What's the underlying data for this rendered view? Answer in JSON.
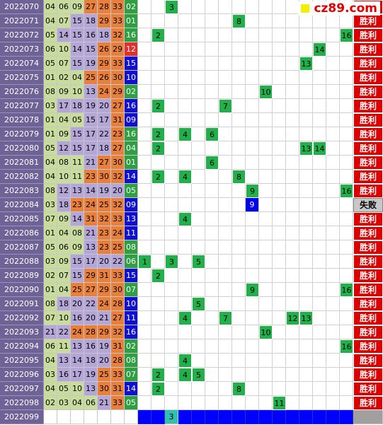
{
  "logo": "cz89.com",
  "rows": [
    {
      "issue": "2022070",
      "numbers": [
        "04",
        "06",
        "09",
        "27",
        "28",
        "33",
        "02"
      ],
      "blue_color": "#2ea043",
      "marks": [
        3
      ],
      "result": "胜利"
    },
    {
      "issue": "2022071",
      "numbers": [
        "04",
        "07",
        "15",
        "18",
        "29",
        "33",
        "01"
      ],
      "blue_color": "#2ea043",
      "marks": [
        8
      ],
      "result": "胜利"
    },
    {
      "issue": "2022072",
      "numbers": [
        "05",
        "14",
        "15",
        "16",
        "18",
        "32",
        "16"
      ],
      "blue_color": "#2ea043",
      "marks": [
        2,
        16
      ],
      "result": "胜利"
    },
    {
      "issue": "2022073",
      "numbers": [
        "06",
        "10",
        "14",
        "15",
        "26",
        "29",
        "12"
      ],
      "blue_color": "#e03030",
      "marks": [
        14
      ],
      "result": "胜利"
    },
    {
      "issue": "2022074",
      "numbers": [
        "05",
        "07",
        "15",
        "19",
        "29",
        "33",
        "15"
      ],
      "blue_color": "#1010d0",
      "marks": [
        13
      ],
      "result": "胜利"
    },
    {
      "issue": "2022075",
      "numbers": [
        "01",
        "02",
        "04",
        "25",
        "26",
        "30",
        "10"
      ],
      "blue_color": "#1010d0",
      "marks": [],
      "result": "胜利"
    },
    {
      "issue": "2022076",
      "numbers": [
        "08",
        "09",
        "10",
        "13",
        "24",
        "29",
        "02"
      ],
      "blue_color": "#2ea043",
      "marks": [
        10
      ],
      "result": "胜利"
    },
    {
      "issue": "2022077",
      "numbers": [
        "03",
        "17",
        "18",
        "19",
        "20",
        "27",
        "16"
      ],
      "blue_color": "#1010d0",
      "marks": [
        2,
        7
      ],
      "result": "胜利"
    },
    {
      "issue": "2022078",
      "numbers": [
        "01",
        "04",
        "05",
        "15",
        "17",
        "31",
        "09"
      ],
      "blue_color": "#1010d0",
      "marks": [],
      "result": "胜利"
    },
    {
      "issue": "2022079",
      "numbers": [
        "01",
        "09",
        "15",
        "17",
        "22",
        "23",
        "16"
      ],
      "blue_color": "#2ea043",
      "marks": [
        2,
        4,
        6
      ],
      "result": "胜利"
    },
    {
      "issue": "2022080",
      "numbers": [
        "05",
        "12",
        "15",
        "17",
        "18",
        "27",
        "04"
      ],
      "blue_color": "#2ea043",
      "marks": [
        2,
        13,
        14
      ],
      "result": "胜利"
    },
    {
      "issue": "2022081",
      "numbers": [
        "04",
        "08",
        "11",
        "21",
        "27",
        "30",
        "01"
      ],
      "blue_color": "#2ea043",
      "marks": [
        6
      ],
      "result": "胜利"
    },
    {
      "issue": "2022082",
      "numbers": [
        "04",
        "10",
        "11",
        "23",
        "30",
        "32",
        "14"
      ],
      "blue_color": "#1010d0",
      "marks": [
        2,
        4,
        8
      ],
      "result": "胜利"
    },
    {
      "issue": "2022083",
      "numbers": [
        "08",
        "12",
        "13",
        "14",
        "19",
        "20",
        "05"
      ],
      "blue_color": "#2ea043",
      "marks": [
        9,
        16
      ],
      "result": "胜利"
    },
    {
      "issue": "2022084",
      "numbers": [
        "03",
        "18",
        "23",
        "24",
        "25",
        "32",
        "09"
      ],
      "blue_color": "#1010d0",
      "marks": [
        9
      ],
      "result": "失败"
    },
    {
      "issue": "2022085",
      "numbers": [
        "07",
        "09",
        "14",
        "31",
        "32",
        "33",
        "13"
      ],
      "blue_color": "#1010d0",
      "marks": [
        4
      ],
      "result": "胜利"
    },
    {
      "issue": "2022086",
      "numbers": [
        "01",
        "04",
        "08",
        "21",
        "23",
        "24",
        "11"
      ],
      "blue_color": "#1010d0",
      "marks": [],
      "result": "胜利"
    },
    {
      "issue": "2022087",
      "numbers": [
        "05",
        "06",
        "09",
        "13",
        "23",
        "25",
        "08"
      ],
      "blue_color": "#2ea043",
      "marks": [],
      "result": "胜利"
    },
    {
      "issue": "2022088",
      "numbers": [
        "03",
        "09",
        "15",
        "17",
        "20",
        "22",
        "06"
      ],
      "blue_color": "#2ea043",
      "marks": [
        1,
        3,
        5
      ],
      "result": "胜利"
    },
    {
      "issue": "2022089",
      "numbers": [
        "02",
        "07",
        "15",
        "29",
        "31",
        "33",
        "15"
      ],
      "blue_color": "#1010d0",
      "marks": [
        2
      ],
      "result": "胜利"
    },
    {
      "issue": "2022090",
      "numbers": [
        "01",
        "04",
        "25",
        "27",
        "29",
        "30",
        "07"
      ],
      "blue_color": "#2ea043",
      "marks": [
        9,
        16
      ],
      "result": "胜利"
    },
    {
      "issue": "2022091",
      "numbers": [
        "08",
        "18",
        "20",
        "22",
        "24",
        "28",
        "10"
      ],
      "blue_color": "#1010d0",
      "marks": [
        5
      ],
      "result": "胜利"
    },
    {
      "issue": "2022092",
      "numbers": [
        "07",
        "10",
        "16",
        "20",
        "21",
        "27",
        "11"
      ],
      "blue_color": "#1010d0",
      "marks": [
        4,
        7,
        12,
        13
      ],
      "result": "胜利"
    },
    {
      "issue": "2022093",
      "numbers": [
        "21",
        "22",
        "24",
        "28",
        "29",
        "32",
        "16"
      ],
      "blue_color": "#1010d0",
      "marks": [
        10
      ],
      "result": "胜利"
    },
    {
      "issue": "2022094",
      "numbers": [
        "06",
        "11",
        "13",
        "16",
        "19",
        "31",
        "02"
      ],
      "blue_color": "#2ea043",
      "marks": [
        16
      ],
      "result": "胜利"
    },
    {
      "issue": "2022095",
      "numbers": [
        "04",
        "13",
        "14",
        "18",
        "20",
        "28",
        "08"
      ],
      "blue_color": "#2ea043",
      "marks": [
        4
      ],
      "result": "胜利"
    },
    {
      "issue": "2022096",
      "numbers": [
        "03",
        "16",
        "17",
        "19",
        "25",
        "33",
        "07"
      ],
      "blue_color": "#2ea043",
      "marks": [
        2,
        4,
        5
      ],
      "result": "胜利"
    },
    {
      "issue": "2022097",
      "numbers": [
        "04",
        "05",
        "10",
        "13",
        "30",
        "31",
        "14"
      ],
      "blue_color": "#1010d0",
      "marks": [
        2,
        8
      ],
      "result": "胜利"
    },
    {
      "issue": "2022098",
      "numbers": [
        "02",
        "03",
        "04",
        "06",
        "21",
        "33",
        "05"
      ],
      "blue_color": "#2ea043",
      "marks": [
        11
      ],
      "result": "胜利"
    },
    {
      "issue": "2022099",
      "numbers": [],
      "blue_color": "#2ea043",
      "marks": [
        3
      ]
    }
  ]
}
